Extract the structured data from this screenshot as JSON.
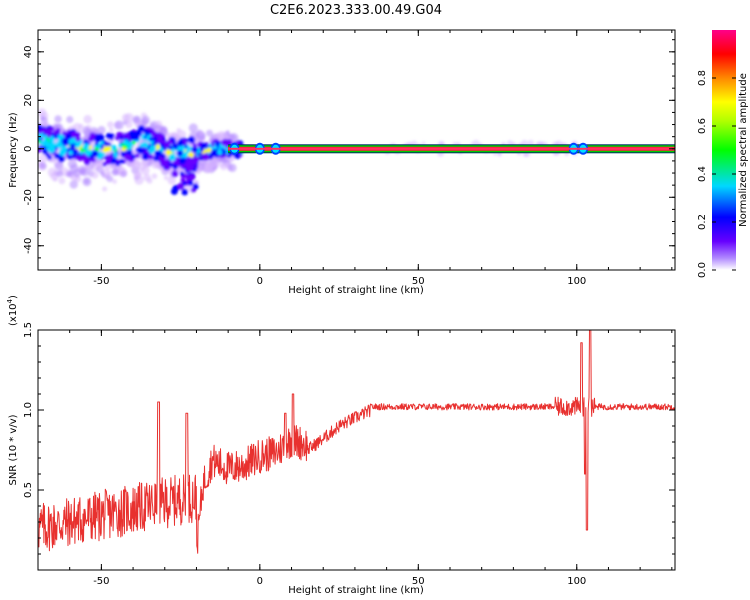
{
  "title": "C2E6.2023.333.00.49.G04",
  "colors": {
    "snr_line": "#e8312f",
    "fft_band_core": "#ff1f3a",
    "fft_band_edge": "#00c800",
    "axis": "#000000"
  },
  "chart_data": [
    {
      "type": "heatmap",
      "name": "spectrogram",
      "xlabel": "Height of straight line (km)",
      "ylabel": "Frequency (Hz)",
      "xlim": [
        -70,
        131
      ],
      "ylim": [
        -50,
        49
      ],
      "xticks": [
        -50,
        0,
        50,
        100
      ],
      "yticks": [
        -40,
        -20,
        0,
        20,
        40
      ],
      "xtick_labels": [
        "-50",
        "0",
        "50",
        "100"
      ],
      "ytick_labels": [
        "-40",
        "-20",
        "0",
        "20",
        "40"
      ],
      "grid": false,
      "colorbar": {
        "label": "Normalized spectral amplitude",
        "range": [
          0,
          1
        ],
        "ticks": [
          0.0,
          0.2,
          0.4,
          0.6,
          0.8
        ],
        "tick_labels": [
          "0.0",
          "0.2",
          "0.4",
          "0.6",
          "0.8"
        ],
        "colormap": [
          "#ffffff",
          "#6600ff",
          "#0000ff",
          "#00d8ff",
          "#00ff00",
          "#ffff00",
          "#ff8800",
          "#ff0000",
          "#ff0088"
        ]
      },
      "main_tone": [
        {
          "x": -70,
          "freq": 3.5
        },
        {
          "x": -65,
          "freq": 2.0
        },
        {
          "x": -60,
          "freq": 1.0
        },
        {
          "x": -55,
          "freq": 0.0
        },
        {
          "x": -50,
          "freq": -0.5
        },
        {
          "x": -45,
          "freq": -0.5
        },
        {
          "x": -42,
          "freq": 1.0
        },
        {
          "x": -38,
          "freq": 2.5
        },
        {
          "x": -35,
          "freq": 2.0
        },
        {
          "x": -32,
          "freq": 0.5
        },
        {
          "x": -30,
          "freq": -2.0
        },
        {
          "x": -27,
          "freq": -1.5
        },
        {
          "x": -25,
          "freq": 0.0
        },
        {
          "x": -22,
          "freq": -2.0
        },
        {
          "x": -18,
          "freq": -1.0
        },
        {
          "x": -12,
          "freq": 0.0
        },
        {
          "x": -8,
          "freq": 0.0
        },
        {
          "x": 131,
          "freq": 0.0
        }
      ],
      "note": "noisy scattered energy below -10 km; steady 0 Hz tone above"
    },
    {
      "type": "line",
      "name": "snr",
      "xlabel": "Height of straight line (km)",
      "ylabel": "SNR (10 * v/v)",
      "y_multiplier": "(x10^4)",
      "y_multiplier_base": "(x10",
      "y_multiplier_exp": "4",
      "y_multiplier_close": ")",
      "xlim": [
        -70,
        131
      ],
      "ylim": [
        0,
        1.5
      ],
      "xticks": [
        -50,
        0,
        50,
        100
      ],
      "yticks": [
        0.5,
        1.0,
        1.5
      ],
      "xtick_labels": [
        "-50",
        "0",
        "50",
        "100"
      ],
      "ytick_labels": [
        "0.5",
        "1.0",
        "1.5"
      ],
      "grid": false,
      "series": [
        {
          "name": "SNR",
          "x": [
            -70,
            -65,
            -60,
            -55,
            -50,
            -45,
            -40,
            -35,
            -32,
            -30,
            -25,
            -22,
            -20,
            -18,
            -15,
            -10,
            -5,
            0,
            5,
            10,
            15,
            20,
            25,
            30,
            35,
            40,
            50,
            60,
            70,
            80,
            90,
            95,
            98,
            100,
            102,
            103,
            104,
            105,
            110,
            120,
            131
          ],
          "values": [
            0.12,
            0.15,
            0.18,
            0.2,
            0.22,
            0.25,
            0.3,
            0.35,
            1.05,
            0.2,
            0.15,
            0.92,
            0.1,
            0.5,
            0.65,
            0.6,
            0.62,
            0.68,
            0.7,
            0.78,
            0.75,
            0.82,
            0.9,
            0.95,
            1.0,
            1.02,
            1.03,
            1.03,
            1.03,
            1.02,
            1.03,
            1.05,
            0.9,
            1.2,
            1.45,
            0.25,
            1.5,
            1.0,
            1.01,
            1.01,
            1.0
          ]
        }
      ]
    }
  ]
}
